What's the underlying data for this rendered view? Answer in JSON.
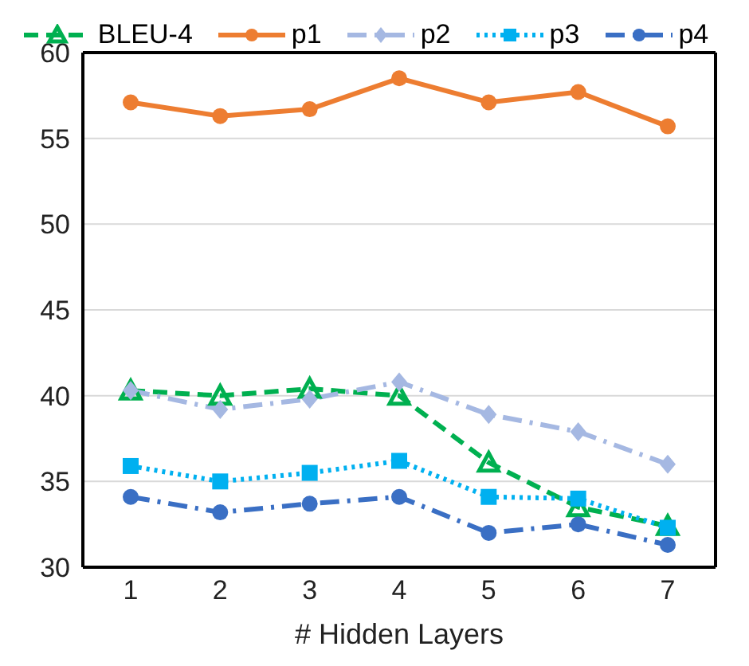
{
  "chart_data": {
    "type": "line",
    "xlabel": "# Hidden Layers",
    "categories": [
      "1",
      "2",
      "3",
      "4",
      "5",
      "6",
      "7"
    ],
    "ylim": [
      30,
      60
    ],
    "yticks": [
      30,
      35,
      40,
      45,
      50,
      55,
      60
    ],
    "grid": "y",
    "legend": "top",
    "series": [
      {
        "name": "BLEU-4",
        "color": "#00b050",
        "marker": "triangle",
        "line_style": "dashed",
        "values": [
          40.3,
          40.0,
          40.4,
          40.0,
          36.1,
          33.5,
          32.4
        ]
      },
      {
        "name": "p1",
        "color": "#ed7d31",
        "marker": "circle",
        "line_style": "solid",
        "values": [
          57.1,
          56.3,
          56.7,
          58.5,
          57.1,
          57.7,
          55.7
        ]
      },
      {
        "name": "p2",
        "color": "#a5b8e2",
        "marker": "diamond",
        "line_style": "dashdot",
        "values": [
          40.3,
          39.2,
          39.8,
          40.8,
          38.9,
          37.9,
          36.0
        ]
      },
      {
        "name": "p3",
        "color": "#00b0f0",
        "marker": "square",
        "line_style": "dotted",
        "values": [
          35.9,
          35.0,
          35.5,
          36.2,
          34.1,
          34.0,
          32.3
        ]
      },
      {
        "name": "p4",
        "color": "#3a6fc4",
        "marker": "circle",
        "line_style": "dashdot",
        "values": [
          34.1,
          33.2,
          33.7,
          34.1,
          32.0,
          32.5,
          31.3
        ]
      }
    ]
  }
}
